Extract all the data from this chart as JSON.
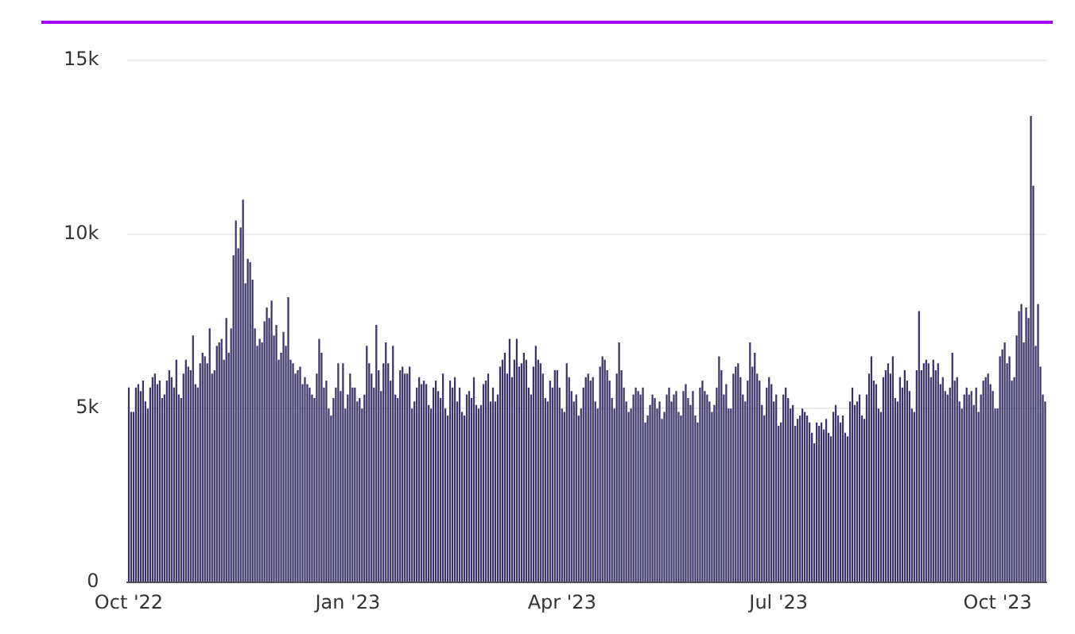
{
  "chart_data": {
    "type": "bar",
    "color": "#3a3468",
    "grid": "y",
    "legend": false,
    "ylim": [
      0,
      15
    ],
    "yticks": [
      {
        "value": 0,
        "label": "0"
      },
      {
        "value": 5,
        "label": "5k"
      },
      {
        "value": 10,
        "label": "10k"
      },
      {
        "value": 15,
        "label": "15k"
      }
    ],
    "categories": [
      "Oct '22",
      null,
      null,
      null,
      null,
      null,
      null,
      null,
      null,
      null,
      null,
      null,
      null,
      null,
      null,
      null,
      null,
      null,
      null,
      null,
      null,
      null,
      null,
      null,
      null,
      null,
      null,
      null,
      null,
      null,
      null,
      null,
      null,
      null,
      null,
      null,
      null,
      null,
      null,
      null,
      null,
      null,
      null,
      null,
      null,
      null,
      null,
      null,
      null,
      null,
      null,
      null,
      null,
      null,
      null,
      null,
      null,
      null,
      null,
      null,
      null,
      null,
      null,
      null,
      null,
      null,
      null,
      null,
      null,
      null,
      null,
      null,
      null,
      null,
      null,
      null,
      null,
      null,
      null,
      null,
      null,
      null,
      null,
      null,
      null,
      null,
      null,
      null,
      null,
      null,
      null,
      null,
      "Jan '23",
      null,
      null,
      null,
      null,
      null,
      null,
      null,
      null,
      null,
      null,
      null,
      null,
      null,
      null,
      null,
      null,
      null,
      null,
      null,
      null,
      null,
      null,
      null,
      null,
      null,
      null,
      null,
      null,
      null,
      null,
      null,
      null,
      null,
      null,
      null,
      null,
      null,
      null,
      null,
      null,
      null,
      null,
      null,
      null,
      null,
      null,
      null,
      null,
      null,
      null,
      null,
      null,
      null,
      null,
      null,
      null,
      null,
      null,
      null,
      null,
      null,
      null,
      null,
      null,
      null,
      null,
      null,
      null,
      null,
      null,
      null,
      null,
      null,
      null,
      null,
      null,
      null,
      null,
      null,
      null,
      null,
      null,
      null,
      null,
      null,
      null,
      null,
      null,
      null,
      "Apr '23",
      null,
      null,
      null,
      null,
      null,
      null,
      null,
      null,
      null,
      null,
      null,
      null,
      null,
      null,
      null,
      null,
      null,
      null,
      null,
      null,
      null,
      null,
      null,
      null,
      null,
      null,
      null,
      null,
      null,
      null,
      null,
      null,
      null,
      null,
      null,
      null,
      null,
      null,
      null,
      null,
      null,
      null,
      null,
      null,
      null,
      null,
      null,
      null,
      null,
      null,
      null,
      null,
      null,
      null,
      null,
      null,
      null,
      null,
      null,
      null,
      null,
      null,
      null,
      null,
      null,
      null,
      null,
      null,
      null,
      null,
      null,
      null,
      null,
      null,
      null,
      null,
      null,
      null,
      null,
      null,
      null,
      null,
      null,
      null,
      null,
      null,
      null,
      null,
      null,
      null,
      "Jul '23",
      null,
      null,
      null,
      null,
      null,
      null,
      null,
      null,
      null,
      null,
      null,
      null,
      null,
      null,
      null,
      null,
      null,
      null,
      null,
      null,
      null,
      null,
      null,
      null,
      null,
      null,
      null,
      null,
      null,
      null,
      null,
      null,
      null,
      null,
      null,
      null,
      null,
      null,
      null,
      null,
      null,
      null,
      null,
      null,
      null,
      null,
      null,
      null,
      null,
      null,
      null,
      null,
      null,
      null,
      null,
      null,
      null,
      null,
      null,
      null,
      null,
      null,
      null,
      null,
      null,
      null,
      null,
      null,
      null,
      null,
      null,
      null,
      null,
      null,
      null,
      null,
      null,
      null,
      null,
      null,
      null,
      null,
      null,
      null,
      null,
      null,
      null,
      null,
      null,
      null,
      null,
      "Oct '23",
      null,
      null,
      null,
      null,
      null,
      null,
      null,
      null,
      null,
      null,
      null,
      null,
      null,
      null,
      null,
      null,
      null,
      null,
      null,
      null
    ],
    "values": [
      5.6,
      4.9,
      4.9,
      5.6,
      5.7,
      5.5,
      5.8,
      5.2,
      5.0,
      5.6,
      5.9,
      6.0,
      5.7,
      5.8,
      5.3,
      5.4,
      5.8,
      6.1,
      5.9,
      5.6,
      6.4,
      5.4,
      5.3,
      6.0,
      6.4,
      6.2,
      6.1,
      7.1,
      5.7,
      5.6,
      6.3,
      6.6,
      6.5,
      6.3,
      7.3,
      6.0,
      6.1,
      6.8,
      6.9,
      7.0,
      6.4,
      7.6,
      6.6,
      7.3,
      9.4,
      10.4,
      9.6,
      10.2,
      11.0,
      8.6,
      9.3,
      9.2,
      8.7,
      7.3,
      6.8,
      7.0,
      6.9,
      7.5,
      7.9,
      7.6,
      8.1,
      7.1,
      7.4,
      6.4,
      6.6,
      7.2,
      6.8,
      8.2,
      6.4,
      6.3,
      6.0,
      6.1,
      6.2,
      5.7,
      5.9,
      5.7,
      5.6,
      5.4,
      5.3,
      6.0,
      7.0,
      6.6,
      5.6,
      5.8,
      5.0,
      4.8,
      5.3,
      5.6,
      6.3,
      5.5,
      6.3,
      5.0,
      5.4,
      6.0,
      5.6,
      5.6,
      5.2,
      5.3,
      5.0,
      5.4,
      6.8,
      6.3,
      6.0,
      5.6,
      7.4,
      6.1,
      5.5,
      6.3,
      6.9,
      6.3,
      5.8,
      6.8,
      5.4,
      5.3,
      6.1,
      6.2,
      6.0,
      6.0,
      6.2,
      5.0,
      5.2,
      5.6,
      5.9,
      5.7,
      5.8,
      5.7,
      5.1,
      5.0,
      5.6,
      5.8,
      5.5,
      5.3,
      6.0,
      5.0,
      4.8,
      5.8,
      5.6,
      5.9,
      5.2,
      5.6,
      4.9,
      4.8,
      5.4,
      5.5,
      5.3,
      5.9,
      5.1,
      5.0,
      5.1,
      5.7,
      5.8,
      6.0,
      5.2,
      5.6,
      5.2,
      5.4,
      6.2,
      6.4,
      6.6,
      6.0,
      7.0,
      5.9,
      6.4,
      7.0,
      6.2,
      6.3,
      6.6,
      6.4,
      5.6,
      5.4,
      6.2,
      6.8,
      6.4,
      6.3,
      6.0,
      5.3,
      5.2,
      5.8,
      5.6,
      6.1,
      6.1,
      5.6,
      5.0,
      4.9,
      6.3,
      5.9,
      5.5,
      5.2,
      5.4,
      4.8,
      5.0,
      5.6,
      5.9,
      6.0,
      5.8,
      5.9,
      5.2,
      5.0,
      6.2,
      6.5,
      6.4,
      6.1,
      5.8,
      5.3,
      5.0,
      6.0,
      6.9,
      6.1,
      5.6,
      5.2,
      4.9,
      5.0,
      5.4,
      5.6,
      5.5,
      5.4,
      5.6,
      4.6,
      4.8,
      5.1,
      5.4,
      5.3,
      5.0,
      5.2,
      4.7,
      4.9,
      5.4,
      5.6,
      5.2,
      5.4,
      5.5,
      4.9,
      4.8,
      5.5,
      5.7,
      5.3,
      5.1,
      5.5,
      4.8,
      4.6,
      5.6,
      5.8,
      5.5,
      5.4,
      5.2,
      4.9,
      5.1,
      5.6,
      6.5,
      6.1,
      5.4,
      5.7,
      5.0,
      5.0,
      6.0,
      6.2,
      6.3,
      5.9,
      5.4,
      5.2,
      5.8,
      6.9,
      6.2,
      6.6,
      6.0,
      5.8,
      5.1,
      4.8,
      5.6,
      5.9,
      5.7,
      5.2,
      5.4,
      4.5,
      4.6,
      5.4,
      5.6,
      5.3,
      5.0,
      5.1,
      4.5,
      4.7,
      4.8,
      5.0,
      4.9,
      4.8,
      4.6,
      4.3,
      4.0,
      4.6,
      4.5,
      4.6,
      4.4,
      4.7,
      4.3,
      4.2,
      4.9,
      5.1,
      4.8,
      4.6,
      4.8,
      4.3,
      4.2,
      5.2,
      5.6,
      5.1,
      5.2,
      5.4,
      4.8,
      4.7,
      5.4,
      6.0,
      6.5,
      5.8,
      5.7,
      5.0,
      4.9,
      5.9,
      6.1,
      6.3,
      6.0,
      6.5,
      5.3,
      5.2,
      5.9,
      5.6,
      6.1,
      5.8,
      5.5,
      5.0,
      4.9,
      6.1,
      7.8,
      6.1,
      6.3,
      6.4,
      6.3,
      5.9,
      6.4,
      6.1,
      6.3,
      5.7,
      5.9,
      5.5,
      5.4,
      5.6,
      6.6,
      5.8,
      5.9,
      5.2,
      5.0,
      5.4,
      5.6,
      5.4,
      5.5,
      5.1,
      5.6,
      4.9,
      5.4,
      5.8,
      5.9,
      6.0,
      5.7,
      5.5,
      5.0,
      5.0,
      6.5,
      6.7,
      6.9,
      6.3,
      6.5,
      5.8,
      5.9,
      7.1,
      7.8,
      8.0,
      6.9,
      7.9,
      7.6,
      13.4,
      11.4,
      6.8,
      8.0,
      6.2,
      5.4,
      5.2
    ]
  }
}
